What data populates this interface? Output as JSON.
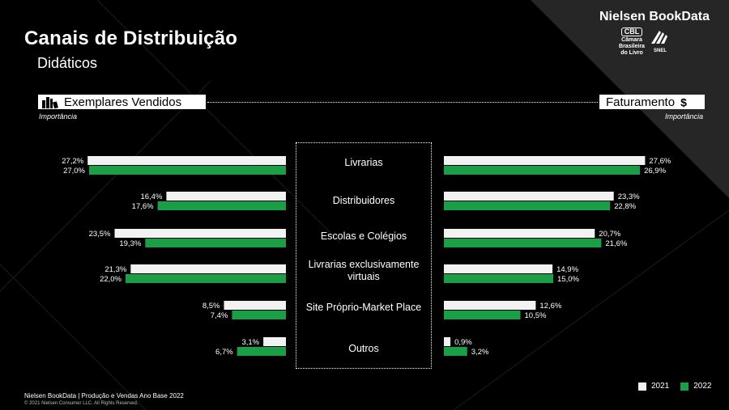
{
  "header": {
    "title": "Canais de Distribuição",
    "subtitle": "Didáticos",
    "brand": "Nielsen BookData",
    "logo_cbl_text": "Câmara Brasileira do Livro",
    "logo_cbl_mark": "CBL",
    "logo_shel_text": "SNEL"
  },
  "panels": {
    "left_title": "Exemplares Vendidos",
    "left_icon": "books-icon",
    "left_subtitle": "Importância",
    "right_title": "Faturamento",
    "right_icon": "dollar-icon",
    "right_subtitle": "Importância"
  },
  "colors": {
    "year_2021": "#f2f2f2",
    "year_2022": "#1a9e46",
    "background": "#000000"
  },
  "chart_data": {
    "type": "bar",
    "categories": [
      "Livrarias",
      "Distribuidores",
      "Escolas e Colégios",
      "Livrarias exclusivamente virtuais",
      "Site Próprio-Market Place",
      "Outros"
    ],
    "legend": [
      "2021",
      "2022"
    ],
    "legend_position": "bottom-right",
    "panels": [
      {
        "title": "Exemplares Vendidos",
        "direction": "right-to-left",
        "series": [
          {
            "name": "2021",
            "values": [
              27.2,
              16.4,
              23.5,
              21.3,
              8.5,
              3.1
            ],
            "labels": [
              "27,2%",
              "16,4%",
              "23,5%",
              "21,3%",
              "8,5%",
              "3,1%"
            ]
          },
          {
            "name": "2022",
            "values": [
              27.0,
              17.6,
              19.3,
              22.0,
              7.4,
              6.7
            ],
            "labels": [
              "27,0%",
              "17,6%",
              "19,3%",
              "22,0%",
              "7,4%",
              "6,7%"
            ]
          }
        ]
      },
      {
        "title": "Faturamento",
        "direction": "left-to-right",
        "series": [
          {
            "name": "2021",
            "values": [
              27.6,
              23.3,
              20.7,
              14.9,
              12.6,
              0.9
            ],
            "labels": [
              "27,6%",
              "23,3%",
              "20,7%",
              "14,9%",
              "12,6%",
              "0,9%"
            ]
          },
          {
            "name": "2022",
            "values": [
              26.9,
              22.8,
              21.6,
              15.0,
              10.5,
              3.2
            ],
            "labels": [
              "26,9%",
              "22,8%",
              "21,6%",
              "15,0%",
              "10,5%",
              "3,2%"
            ]
          }
        ]
      }
    ]
  },
  "footer": {
    "source": "Nielsen BookData  | Produção e Vendas  Ano Base 2022",
    "copyright": "© 2021 Nielsen Consumer LLC. All Rights Reserved."
  }
}
